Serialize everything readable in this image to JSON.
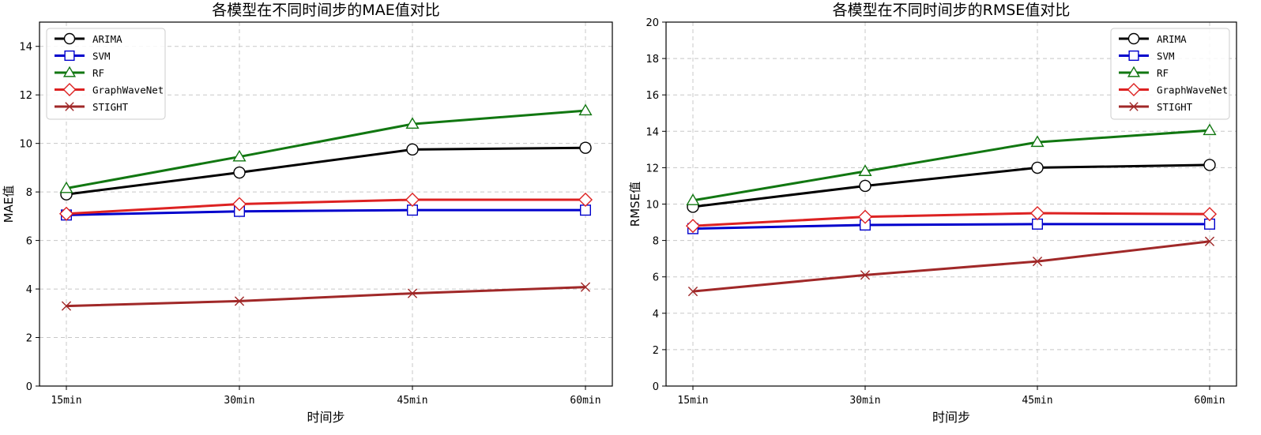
{
  "chart_data": [
    {
      "type": "line",
      "title": "各模型在不同时间步的MAE值对比",
      "xlabel": "时间步",
      "ylabel": "MAE值",
      "categories": [
        "15min",
        "30min",
        "45min",
        "60min"
      ],
      "ylim": [
        0,
        15
      ],
      "yticks": [
        0,
        2,
        4,
        6,
        8,
        10,
        12,
        14
      ],
      "grid": true,
      "legend_position": "top-left",
      "series": [
        {
          "name": "ARIMA",
          "color": "#000000",
          "marker": "circle",
          "values": [
            7.9,
            8.8,
            9.75,
            9.82
          ]
        },
        {
          "name": "SVM",
          "color": "#0000cc",
          "marker": "square",
          "values": [
            7.05,
            7.2,
            7.25,
            7.25
          ]
        },
        {
          "name": "RF",
          "color": "#117711",
          "marker": "triangle",
          "values": [
            8.15,
            9.45,
            10.8,
            11.35
          ]
        },
        {
          "name": "GraphWaveNet",
          "color": "#dd2222",
          "marker": "diamond",
          "values": [
            7.1,
            7.5,
            7.68,
            7.68
          ]
        },
        {
          "name": "STIGHT",
          "color": "#a02828",
          "marker": "x",
          "values": [
            3.3,
            3.5,
            3.82,
            4.08
          ]
        }
      ]
    },
    {
      "type": "line",
      "title": "各模型在不同时间步的RMSE值对比",
      "xlabel": "时间步",
      "ylabel": "RMSE值",
      "categories": [
        "15min",
        "30min",
        "45min",
        "60min"
      ],
      "ylim": [
        0,
        20
      ],
      "yticks": [
        0,
        2,
        4,
        6,
        8,
        10,
        12,
        14,
        16,
        18,
        20
      ],
      "grid": true,
      "legend_position": "top-right",
      "series": [
        {
          "name": "ARIMA",
          "color": "#000000",
          "marker": "circle",
          "values": [
            9.85,
            11.0,
            12.0,
            12.15
          ]
        },
        {
          "name": "SVM",
          "color": "#0000cc",
          "marker": "square",
          "values": [
            8.65,
            8.85,
            8.9,
            8.9
          ]
        },
        {
          "name": "RF",
          "color": "#117711",
          "marker": "triangle",
          "values": [
            10.2,
            11.8,
            13.4,
            14.05
          ]
        },
        {
          "name": "GraphWaveNet",
          "color": "#dd2222",
          "marker": "diamond",
          "values": [
            8.8,
            9.3,
            9.5,
            9.45
          ]
        },
        {
          "name": "STIGHT",
          "color": "#a02828",
          "marker": "x",
          "values": [
            5.2,
            6.1,
            6.85,
            7.95
          ]
        }
      ]
    }
  ]
}
